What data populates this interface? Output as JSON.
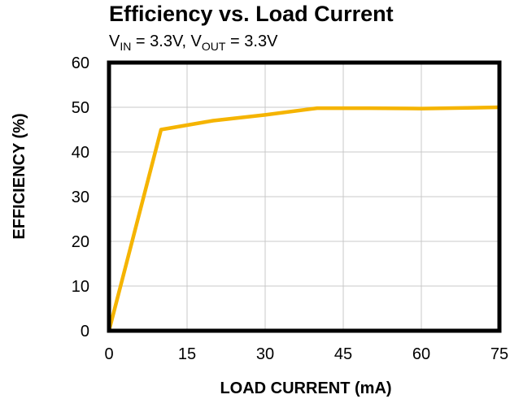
{
  "chart_data": {
    "type": "line",
    "title": "Efficiency vs. Load Current",
    "subtitle": {
      "p1": "V",
      "p2": "IN",
      "p3": " = 3.3V, V",
      "p4": "OUT",
      "p5": " = 3.3V"
    },
    "xlabel": "LOAD CURRENT (mA)",
    "ylabel": "EFFICIENCY (%)",
    "xlim": [
      0,
      75
    ],
    "ylim": [
      0,
      60
    ],
    "x_ticks": [
      "0",
      "15",
      "30",
      "45",
      "60",
      "75"
    ],
    "y_ticks": [
      "0",
      "10",
      "20",
      "30",
      "40",
      "50",
      "60"
    ],
    "grid": true,
    "series": [
      {
        "color": "#F5B400",
        "x": [
          0,
          10,
          20,
          30,
          40,
          50,
          60,
          70,
          75
        ],
        "y": [
          0,
          45,
          47,
          48.3,
          49.8,
          49.8,
          49.7,
          49.9,
          50
        ]
      }
    ]
  }
}
